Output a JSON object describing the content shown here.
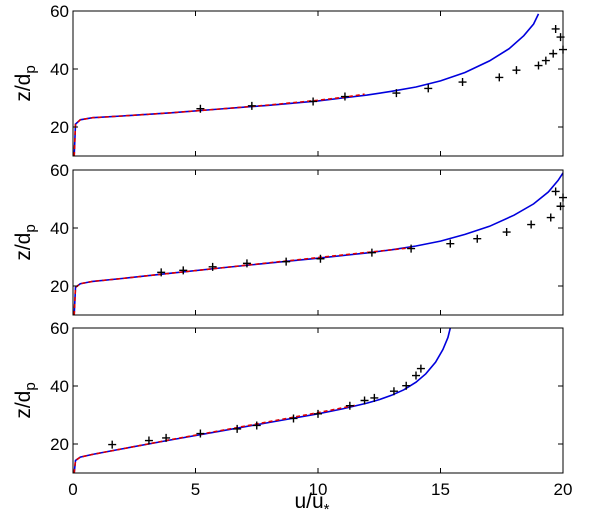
{
  "chart_data": [
    {
      "type": "line",
      "panel": "top",
      "xlim": [
        0,
        20
      ],
      "ylim": [
        10,
        60
      ],
      "xticks": [
        0,
        5,
        10,
        15,
        20
      ],
      "yticks": [
        20,
        40,
        60
      ],
      "xtick_labels": [
        "",
        "",
        "",
        "",
        ""
      ],
      "ytick_labels": [
        "20",
        "40",
        "60"
      ],
      "xlabel": "",
      "ylabel": "z/d",
      "ylabel_sub": "p",
      "grid": false,
      "series": [
        {
          "kind": "line",
          "color": "#0000dd",
          "style": "solid",
          "x": [
            0.05,
            0.1,
            0.3,
            0.8,
            2,
            4,
            6,
            8,
            10,
            11,
            12,
            13,
            14,
            15,
            16,
            17,
            17.8,
            18.4,
            18.8,
            19.0
          ],
          "y": [
            10,
            21,
            22.5,
            23.2,
            23.8,
            24.9,
            26.2,
            27.5,
            29.0,
            30.0,
            31.0,
            32.3,
            33.8,
            35.9,
            38.8,
            42.8,
            47.0,
            51.5,
            55.5,
            59.0
          ]
        },
        {
          "kind": "line",
          "color": "#dd0000",
          "style": "dashed",
          "x": [
            0.05,
            0.1,
            0.3,
            0.8,
            2,
            4,
            6,
            8,
            10,
            11,
            11.9
          ],
          "y": [
            10,
            21,
            22.5,
            23.2,
            23.8,
            24.9,
            26.2,
            27.6,
            29.2,
            30.2,
            31.3
          ]
        },
        {
          "kind": "marker",
          "marker": "+",
          "color": "#000000",
          "x": [
            5.2,
            7.3,
            9.8,
            11.1,
            13.2,
            14.5,
            15.9,
            17.4,
            18.1,
            19.0,
            19.3,
            19.6,
            19.7,
            19.9,
            20.0
          ],
          "y": [
            26.3,
            27.3,
            28.8,
            30.5,
            31.7,
            33.3,
            35.5,
            37.1,
            39.6,
            41.2,
            42.9,
            45.3,
            53.8,
            51.0,
            46.7
          ]
        }
      ]
    },
    {
      "type": "line",
      "panel": "middle",
      "xlim": [
        0,
        20
      ],
      "ylim": [
        10,
        60
      ],
      "xticks": [
        0,
        5,
        10,
        15,
        20
      ],
      "yticks": [
        20,
        40,
        60
      ],
      "xtick_labels": [
        "",
        "",
        "",
        "",
        ""
      ],
      "ytick_labels": [
        "20",
        "40",
        "60"
      ],
      "xlabel": "",
      "ylabel": "z/d",
      "ylabel_sub": "p",
      "grid": false,
      "series": [
        {
          "kind": "line",
          "color": "#0000dd",
          "style": "solid",
          "x": [
            0.05,
            0.1,
            0.3,
            0.8,
            2,
            4,
            6,
            8,
            10,
            12,
            13,
            14,
            15,
            16,
            17,
            18,
            18.8,
            19.4,
            19.8,
            20.0
          ],
          "y": [
            10,
            19.5,
            20.8,
            21.6,
            22.6,
            24.4,
            26.2,
            27.9,
            29.6,
            31.4,
            32.5,
            33.8,
            35.5,
            37.8,
            40.6,
            44.4,
            48.3,
            52.4,
            56.4,
            59.0
          ]
        },
        {
          "kind": "line",
          "color": "#dd0000",
          "style": "dashed",
          "x": [
            0.05,
            0.1,
            0.3,
            0.8,
            2,
            4,
            6,
            8,
            10,
            12,
            13.8
          ],
          "y": [
            10,
            19.5,
            20.8,
            21.6,
            22.6,
            24.4,
            26.2,
            28.0,
            29.8,
            31.6,
            33.2
          ]
        },
        {
          "kind": "marker",
          "marker": "+",
          "color": "#000000",
          "x": [
            3.6,
            4.5,
            5.7,
            7.1,
            8.7,
            10.1,
            12.2,
            13.8,
            15.4,
            16.5,
            17.7,
            18.7,
            19.5,
            19.7,
            19.9,
            20.0
          ],
          "y": [
            24.7,
            25.4,
            26.6,
            27.8,
            28.4,
            29.4,
            31.5,
            32.9,
            34.6,
            36.3,
            38.6,
            41.2,
            43.6,
            52.6,
            47.5,
            50.5
          ]
        }
      ]
    },
    {
      "type": "line",
      "panel": "bottom",
      "xlim": [
        0,
        20
      ],
      "ylim": [
        10,
        60
      ],
      "xticks": [
        0,
        5,
        10,
        15,
        20
      ],
      "yticks": [
        20,
        40,
        60
      ],
      "xtick_labels": [
        "0",
        "5",
        "10",
        "15",
        "20"
      ],
      "ytick_labels": [
        "20",
        "40",
        "60"
      ],
      "xlabel": "u/u",
      "xlabel_sub": "*",
      "ylabel": "z/d",
      "ylabel_sub": "p",
      "grid": false,
      "series": [
        {
          "kind": "line",
          "color": "#0000dd",
          "style": "solid",
          "x": [
            0.05,
            0.1,
            0.3,
            0.8,
            2,
            4,
            6,
            8,
            10,
            11,
            12,
            12.5,
            13,
            13.5,
            14,
            14.4,
            14.8,
            15.1,
            15.3,
            15.4
          ],
          "y": [
            10,
            14.3,
            15.5,
            16.4,
            18.3,
            21.4,
            24.4,
            27.4,
            30.4,
            32.1,
            34.1,
            35.3,
            36.8,
            38.7,
            41.3,
            44.2,
            48.2,
            52.6,
            56.7,
            60.0
          ]
        },
        {
          "kind": "line",
          "color": "#dd0000",
          "style": "dashed",
          "x": [
            0.05,
            0.1,
            0.3,
            0.8,
            2,
            4,
            6,
            8,
            10,
            11.5
          ],
          "y": [
            10,
            14.3,
            15.5,
            16.4,
            18.3,
            21.5,
            24.6,
            27.7,
            30.8,
            33.3
          ]
        },
        {
          "kind": "marker",
          "marker": "+",
          "color": "#000000",
          "x": [
            1.6,
            3.1,
            3.8,
            5.2,
            6.7,
            7.5,
            10.0,
            11.3,
            11.9,
            12.3,
            13.1,
            13.6,
            14.0,
            14.2,
            9.0
          ],
          "y": [
            19.8,
            21.2,
            22.1,
            23.6,
            25.2,
            26.4,
            30.4,
            33.2,
            35.0,
            35.9,
            38.2,
            40.1,
            43.6,
            46.0,
            28.8
          ]
        }
      ]
    }
  ]
}
